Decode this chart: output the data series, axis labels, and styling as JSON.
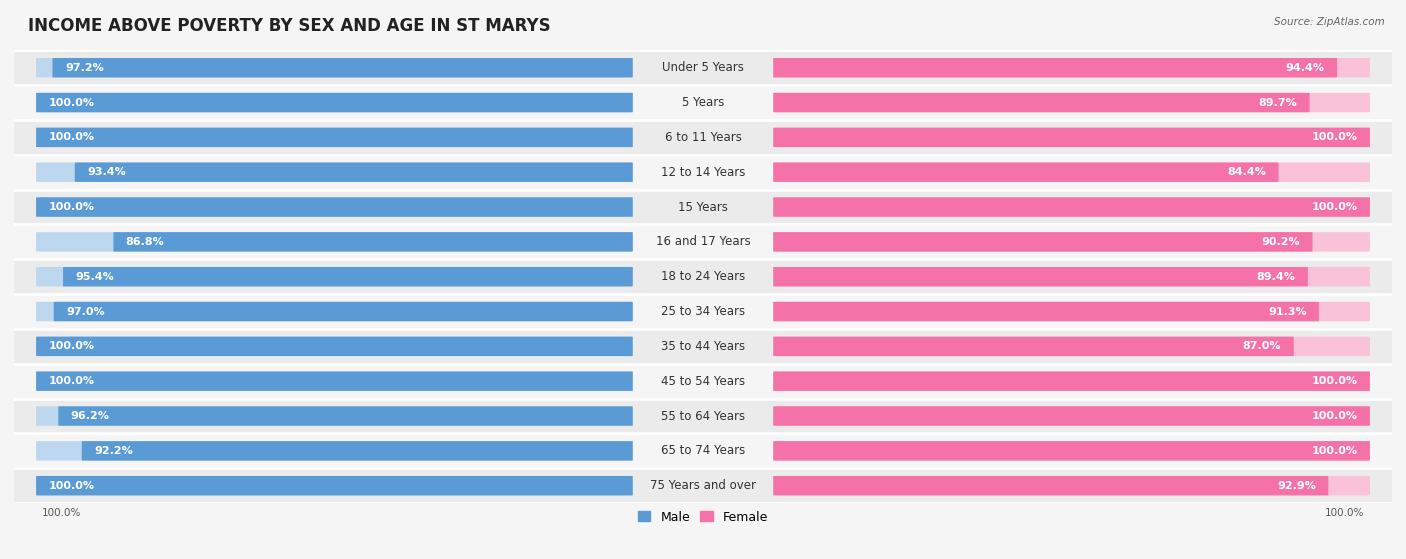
{
  "title": "INCOME ABOVE POVERTY BY SEX AND AGE IN ST MARYS",
  "source": "Source: ZipAtlas.com",
  "categories": [
    "Under 5 Years",
    "5 Years",
    "6 to 11 Years",
    "12 to 14 Years",
    "15 Years",
    "16 and 17 Years",
    "18 to 24 Years",
    "25 to 34 Years",
    "35 to 44 Years",
    "45 to 54 Years",
    "55 to 64 Years",
    "65 to 74 Years",
    "75 Years and over"
  ],
  "male_values": [
    97.2,
    100.0,
    100.0,
    93.4,
    100.0,
    86.8,
    95.4,
    97.0,
    100.0,
    100.0,
    96.2,
    92.2,
    100.0
  ],
  "female_values": [
    94.4,
    89.7,
    100.0,
    84.4,
    100.0,
    90.2,
    89.4,
    91.3,
    87.0,
    100.0,
    100.0,
    100.0,
    92.9
  ],
  "male_color": "#5b9bd5",
  "male_light_color": "#bdd7ee",
  "female_color": "#f472a8",
  "female_light_color": "#f9c2d8",
  "row_bg_odd": "#ebebeb",
  "row_bg_even": "#f5f5f5",
  "title_fontsize": 12,
  "label_fontsize": 8.5,
  "value_fontsize": 8,
  "background_color": "#f5f5f5"
}
